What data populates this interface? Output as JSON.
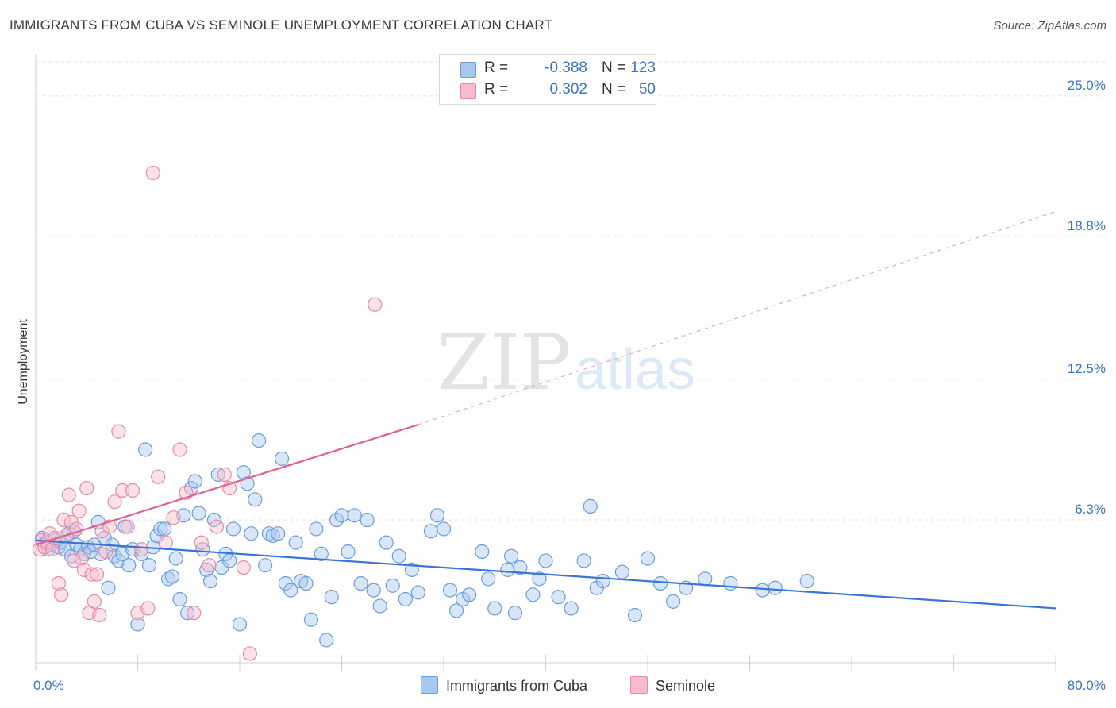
{
  "title": "IMMIGRANTS FROM CUBA VS SEMINOLE UNEMPLOYMENT CORRELATION CHART",
  "source": "Source: ZipAtlas.com",
  "watermark": {
    "zip": "ZIP",
    "atlas": "atlas"
  },
  "legend": {
    "rows": [
      {
        "r_label": "R =",
        "r_value": "-0.388",
        "n_label": "N =",
        "n_value": "123",
        "color": "#a9c8ef",
        "border": "#6b9ddc"
      },
      {
        "r_label": "R =",
        "r_value": "0.302",
        "n_label": "N =",
        "n_value": "50",
        "color": "#f6bccd",
        "border": "#e98aa7"
      }
    ]
  },
  "chart_data": {
    "type": "scatter",
    "title": "IMMIGRANTS FROM CUBA VS SEMINOLE UNEMPLOYMENT CORRELATION CHART",
    "xlabel": "",
    "ylabel": "Unemployment",
    "xlim": [
      0,
      80
    ],
    "ylim": [
      0,
      26.5
    ],
    "x_tick_labels": [
      "0.0%",
      "80.0%"
    ],
    "y_ticks": [
      6.3,
      12.5,
      18.8,
      25.0
    ],
    "y_tick_labels": [
      "6.3%",
      "12.5%",
      "18.8%",
      "25.0%"
    ],
    "grid": true,
    "legend_position": "top-center",
    "series": [
      {
        "name": "Immigrants from Cuba",
        "color": "#a9c8ef",
        "stroke": "#6b9ddc",
        "line_color": "#3a74d6",
        "trend": {
          "x0": 0,
          "y0": 5.4,
          "x1": 80,
          "y1": 2.4
        },
        "points": [
          [
            0.5,
            5.5
          ],
          [
            0.8,
            5.3
          ],
          [
            1.0,
            5.0
          ],
          [
            1.2,
            5.2
          ],
          [
            1.5,
            5.4
          ],
          [
            1.8,
            5.1
          ],
          [
            2.0,
            5.3
          ],
          [
            2.3,
            5.0
          ],
          [
            2.6,
            5.7
          ],
          [
            2.8,
            4.7
          ],
          [
            3.0,
            5.8
          ],
          [
            3.2,
            5.2
          ],
          [
            3.5,
            5.0
          ],
          [
            3.8,
            4.8
          ],
          [
            4.1,
            5.1
          ],
          [
            4.3,
            4.9
          ],
          [
            4.6,
            5.2
          ],
          [
            4.9,
            6.2
          ],
          [
            5.1,
            4.8
          ],
          [
            5.4,
            5.5
          ],
          [
            5.7,
            3.3
          ],
          [
            6.0,
            5.2
          ],
          [
            6.2,
            4.7
          ],
          [
            6.5,
            4.5
          ],
          [
            6.8,
            4.8
          ],
          [
            7.0,
            6.0
          ],
          [
            7.3,
            4.3
          ],
          [
            7.6,
            5.0
          ],
          [
            8.0,
            1.7
          ],
          [
            8.3,
            4.8
          ],
          [
            8.6,
            9.4
          ],
          [
            8.9,
            4.3
          ],
          [
            9.2,
            5.1
          ],
          [
            9.5,
            5.6
          ],
          [
            9.8,
            5.9
          ],
          [
            10.1,
            5.9
          ],
          [
            10.4,
            3.7
          ],
          [
            10.7,
            3.8
          ],
          [
            11.0,
            4.6
          ],
          [
            11.3,
            2.8
          ],
          [
            11.6,
            6.5
          ],
          [
            11.9,
            2.2
          ],
          [
            12.2,
            7.7
          ],
          [
            12.5,
            8.0
          ],
          [
            12.8,
            6.6
          ],
          [
            13.1,
            5.0
          ],
          [
            13.4,
            4.1
          ],
          [
            13.7,
            3.6
          ],
          [
            14.0,
            6.3
          ],
          [
            14.3,
            8.3
          ],
          [
            14.6,
            4.2
          ],
          [
            14.9,
            4.8
          ],
          [
            15.2,
            4.5
          ],
          [
            15.5,
            5.9
          ],
          [
            16.0,
            1.7
          ],
          [
            16.3,
            8.4
          ],
          [
            16.6,
            7.9
          ],
          [
            16.9,
            5.7
          ],
          [
            17.2,
            7.2
          ],
          [
            17.5,
            9.8
          ],
          [
            18.0,
            4.3
          ],
          [
            18.3,
            5.7
          ],
          [
            18.6,
            5.6
          ],
          [
            19.0,
            5.7
          ],
          [
            19.3,
            9.0
          ],
          [
            19.6,
            3.5
          ],
          [
            20.0,
            3.2
          ],
          [
            20.4,
            5.3
          ],
          [
            20.8,
            3.6
          ],
          [
            21.2,
            3.5
          ],
          [
            21.6,
            1.9
          ],
          [
            22.0,
            5.9
          ],
          [
            22.4,
            4.8
          ],
          [
            22.8,
            1.0
          ],
          [
            23.2,
            2.9
          ],
          [
            23.6,
            6.3
          ],
          [
            24.0,
            6.5
          ],
          [
            24.5,
            4.9
          ],
          [
            25.0,
            6.5
          ],
          [
            25.5,
            3.5
          ],
          [
            26.0,
            6.3
          ],
          [
            26.5,
            3.2
          ],
          [
            27.0,
            2.5
          ],
          [
            27.5,
            5.3
          ],
          [
            28.0,
            3.4
          ],
          [
            28.5,
            4.7
          ],
          [
            29.0,
            2.8
          ],
          [
            29.5,
            4.1
          ],
          [
            30.0,
            3.1
          ],
          [
            31.0,
            5.8
          ],
          [
            31.5,
            6.5
          ],
          [
            32.0,
            5.9
          ],
          [
            32.5,
            3.2
          ],
          [
            33.0,
            2.3
          ],
          [
            33.5,
            2.8
          ],
          [
            34.0,
            3.0
          ],
          [
            35.0,
            4.9
          ],
          [
            35.5,
            3.7
          ],
          [
            36.0,
            2.4
          ],
          [
            37.0,
            4.1
          ],
          [
            37.3,
            4.7
          ],
          [
            37.6,
            2.2
          ],
          [
            38.0,
            4.2
          ],
          [
            39.0,
            3.0
          ],
          [
            39.5,
            3.7
          ],
          [
            40.0,
            4.5
          ],
          [
            41.0,
            2.9
          ],
          [
            42.0,
            2.4
          ],
          [
            43.0,
            4.5
          ],
          [
            43.5,
            6.9
          ],
          [
            44.0,
            3.3
          ],
          [
            44.5,
            3.6
          ],
          [
            46.0,
            4.0
          ],
          [
            47.0,
            2.1
          ],
          [
            48.0,
            4.6
          ],
          [
            49.0,
            3.5
          ],
          [
            50.0,
            2.7
          ],
          [
            51.0,
            3.3
          ],
          [
            52.5,
            3.7
          ],
          [
            54.5,
            3.5
          ],
          [
            57.0,
            3.2
          ],
          [
            58.0,
            3.3
          ],
          [
            60.5,
            3.6
          ]
        ]
      },
      {
        "name": "Seminole",
        "color": "#f6bccd",
        "stroke": "#e98aa7",
        "line_color": "#e4608c",
        "trend": {
          "x0": 0,
          "y0": 5.2,
          "x1": 30,
          "y1": 10.5
        },
        "trend_dashed": {
          "x0": 30,
          "y0": 10.5,
          "x1": 80,
          "y1": 19.9
        },
        "points": [
          [
            0.3,
            5.0
          ],
          [
            0.5,
            5.4
          ],
          [
            0.7,
            5.1
          ],
          [
            0.9,
            5.3
          ],
          [
            1.1,
            5.7
          ],
          [
            1.3,
            5.0
          ],
          [
            1.5,
            5.5
          ],
          [
            1.8,
            3.5
          ],
          [
            2.0,
            3.0
          ],
          [
            2.2,
            6.3
          ],
          [
            2.4,
            5.6
          ],
          [
            2.6,
            7.4
          ],
          [
            2.8,
            6.2
          ],
          [
            3.0,
            4.5
          ],
          [
            3.2,
            5.9
          ],
          [
            3.4,
            6.7
          ],
          [
            3.6,
            4.6
          ],
          [
            3.8,
            4.1
          ],
          [
            4.0,
            7.7
          ],
          [
            4.2,
            2.2
          ],
          [
            4.4,
            3.9
          ],
          [
            4.6,
            2.7
          ],
          [
            4.8,
            3.9
          ],
          [
            5.0,
            2.1
          ],
          [
            5.2,
            5.8
          ],
          [
            5.5,
            4.9
          ],
          [
            5.8,
            6.0
          ],
          [
            6.2,
            7.1
          ],
          [
            6.5,
            10.2
          ],
          [
            6.8,
            7.6
          ],
          [
            7.2,
            6.0
          ],
          [
            7.6,
            7.6
          ],
          [
            8.0,
            2.2
          ],
          [
            8.3,
            5.0
          ],
          [
            8.8,
            2.4
          ],
          [
            9.2,
            21.6
          ],
          [
            9.6,
            8.2
          ],
          [
            10.2,
            5.3
          ],
          [
            10.8,
            6.4
          ],
          [
            11.3,
            9.4
          ],
          [
            11.8,
            7.5
          ],
          [
            12.4,
            2.2
          ],
          [
            13.0,
            5.3
          ],
          [
            13.6,
            4.3
          ],
          [
            14.2,
            6.0
          ],
          [
            14.8,
            8.3
          ],
          [
            15.2,
            7.7
          ],
          [
            16.3,
            4.2
          ],
          [
            16.8,
            0.4
          ],
          [
            26.6,
            15.8
          ]
        ]
      }
    ]
  },
  "bottom_legend": [
    {
      "label": "Immigrants from Cuba"
    },
    {
      "label": "Seminole"
    }
  ]
}
